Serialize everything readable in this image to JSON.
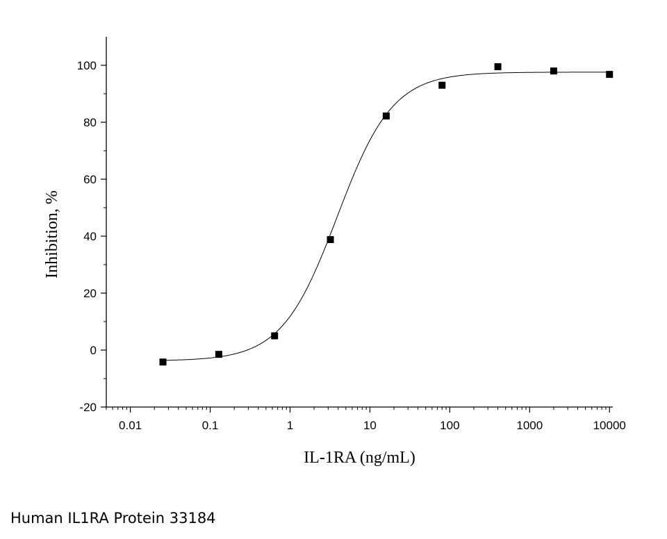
{
  "caption": "Human IL1RA Protein 33184",
  "chart_data": {
    "type": "scatter",
    "xlabel": "IL-1RA (ng/mL)",
    "ylabel": "Inhibition, %",
    "xscale": "log",
    "xlim": [
      0.005,
      11000
    ],
    "ylim": [
      -20,
      110
    ],
    "x_ticks": [
      0.01,
      0.1,
      1,
      10,
      100,
      1000,
      10000
    ],
    "x_tick_labels": [
      "0.01",
      "0.1",
      "1",
      "10",
      "100",
      "1000",
      "10000"
    ],
    "y_ticks": [
      -20,
      0,
      20,
      40,
      60,
      80,
      100
    ],
    "y_tick_labels": [
      "-20",
      "0",
      "20",
      "40",
      "60",
      "80",
      "100"
    ],
    "grid": false,
    "legend": "none",
    "marker_color": "#000000",
    "series": [
      {
        "marker": "square",
        "x": [
          0.0256,
          0.128,
          0.64,
          3.2,
          16,
          80,
          400,
          2000,
          10000
        ],
        "y": [
          -4.2,
          -1.5,
          5.0,
          38.8,
          82.2,
          93.0,
          99.5,
          98.0,
          96.8
        ]
      }
    ],
    "fit_curve": {
      "model": "4PL",
      "bottom": -3.8,
      "top": 97.6,
      "ec50": 3.9,
      "hill": 1.25
    }
  }
}
